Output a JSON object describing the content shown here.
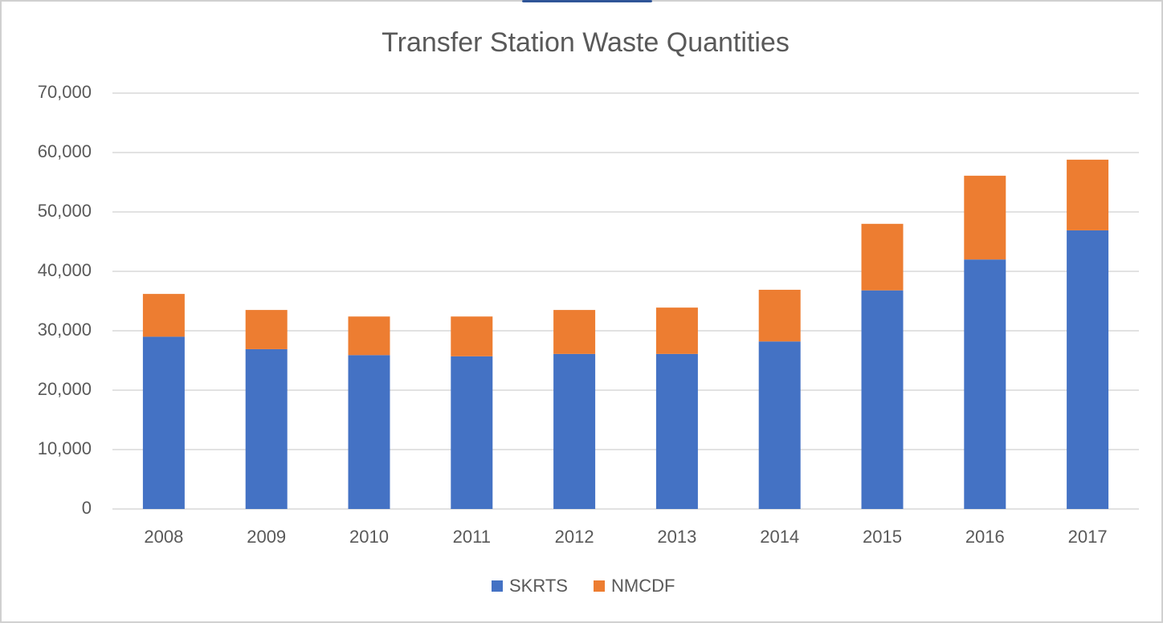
{
  "chart_data": {
    "type": "stacked-bar",
    "title": "Transfer Station Waste Quantities",
    "categories": [
      "2008",
      "2009",
      "2010",
      "2011",
      "2012",
      "2013",
      "2014",
      "2015",
      "2016",
      "2017"
    ],
    "series": [
      {
        "name": "SKRTS",
        "color": "#4472c4",
        "values": [
          29000,
          26900,
          25900,
          25700,
          26100,
          26100,
          28200,
          36800,
          42000,
          46900
        ]
      },
      {
        "name": "NMCDF",
        "color": "#ed7d31",
        "values": [
          7200,
          6600,
          6500,
          6700,
          7400,
          7800,
          8700,
          11200,
          14100,
          11900
        ]
      }
    ],
    "ylim": [
      0,
      70000
    ],
    "yticks": [
      0,
      {
        "value": 10000,
        "label": "10,000"
      },
      {
        "value": 20000,
        "label": "20,000"
      },
      {
        "value": 30000,
        "label": "30,000"
      },
      {
        "value": 40000,
        "label": "40,000"
      },
      {
        "value": 50000,
        "label": "50,000"
      },
      {
        "value": 60000,
        "label": "60,000"
      },
      {
        "value": 70000,
        "label": "70,000"
      }
    ],
    "grid": true,
    "legend": "bottom"
  }
}
